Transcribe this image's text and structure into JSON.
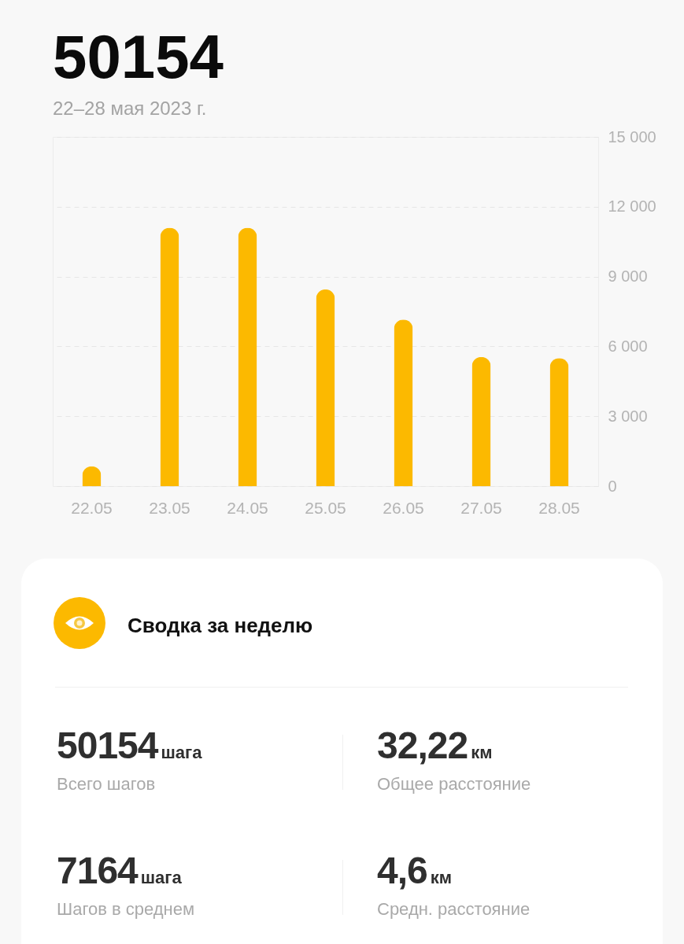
{
  "chart_data": [
    {
      "type": "bar",
      "title": "50154",
      "subtitle": "22–28 мая 2023 г.",
      "categories": [
        "22.05",
        "23.05",
        "24.05",
        "25.05",
        "26.05",
        "27.05",
        "28.05"
      ],
      "values": [
        850,
        11100,
        11100,
        8450,
        7150,
        5550,
        5500
      ],
      "color": "#fcb900",
      "ylim": [
        0,
        15000
      ],
      "yticks": [
        0,
        {
          "value": 3000,
          "label": "3 000"
        },
        {
          "value": 6000,
          "label": "6 000"
        },
        {
          "value": 9000,
          "label": "9 000"
        },
        {
          "value": 12000,
          "label": "12 000"
        },
        {
          "value": 15000,
          "label": "15 000"
        }
      ],
      "grid": "y"
    },
    {
      "type": "other",
      "title": "Сводка за неделю",
      "annotations": [
        "50154",
        "шага",
        "Всего шагов",
        "32,22",
        "км",
        "Общее расстояние",
        "7164",
        "шага",
        "Шагов в среднем",
        "4,6",
        "км",
        "Средн. расстояние"
      ]
    }
  ]
}
